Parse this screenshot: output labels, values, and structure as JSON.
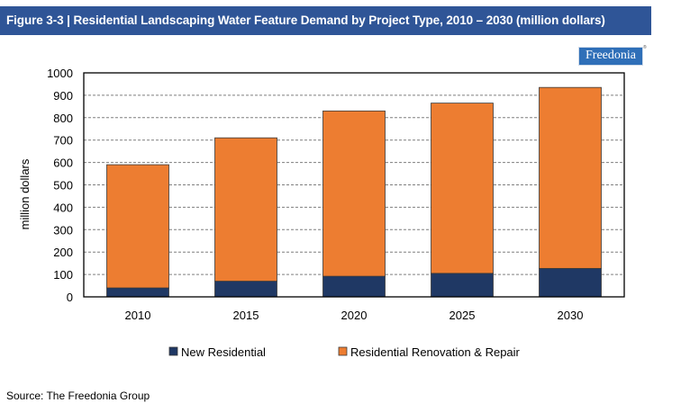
{
  "figure": {
    "title": "Figure 3-3 | Residential Landscaping Water Feature Demand by Project Type, 2010 – 2030 (million dollars)",
    "logo_text": "Freedonia",
    "logo_mark": "®",
    "source": "Source: The Freedonia Group"
  },
  "colors": {
    "title_bg": "#2f5597",
    "new_residential": "#1f3864",
    "renovation_repair": "#ed7d31"
  },
  "chart_data": {
    "type": "bar",
    "stacked": true,
    "title": "Residential Landscaping Water Feature Demand by Project Type, 2010 – 2030 (million dollars)",
    "xlabel": "",
    "ylabel": "million dollars",
    "ylim": [
      0,
      1000
    ],
    "yticks": [
      0,
      100,
      200,
      300,
      400,
      500,
      600,
      700,
      800,
      900,
      1000
    ],
    "grid": "horizontal-dashed",
    "legend_position": "bottom",
    "categories": [
      "2010",
      "2015",
      "2020",
      "2025",
      "2030"
    ],
    "series": [
      {
        "name": "New Residential",
        "color": "#1f3864",
        "values": [
          40,
          70,
          92,
          105,
          127
        ]
      },
      {
        "name": "Residential Renovation & Repair",
        "color": "#ed7d31",
        "values": [
          550,
          640,
          738,
          760,
          808
        ]
      }
    ],
    "totals": [
      590,
      710,
      830,
      865,
      935
    ]
  }
}
